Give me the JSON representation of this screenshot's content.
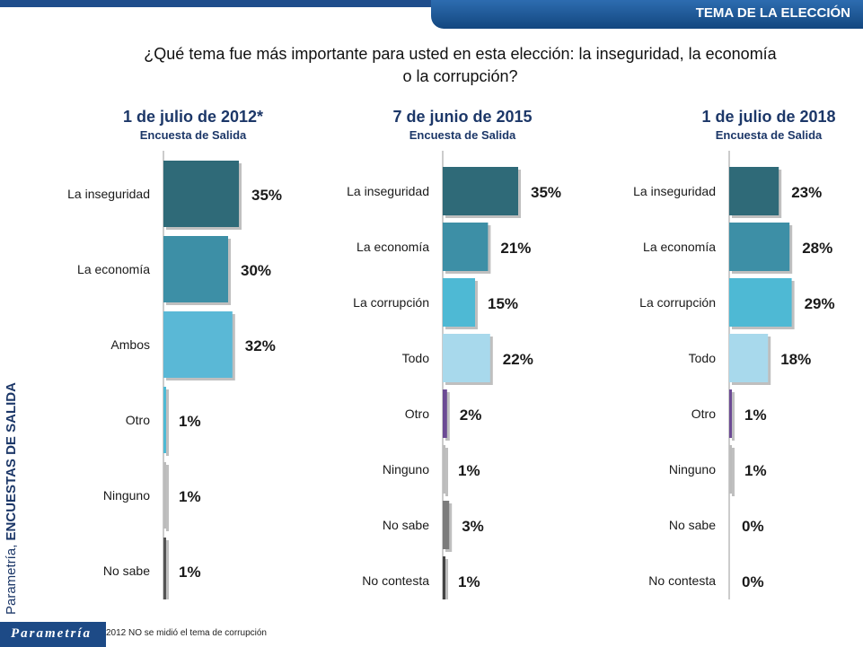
{
  "header": {
    "section_title": "TEMA DE LA ELECCIÓN"
  },
  "question": {
    "line1": "¿Qué tema fue más importante para usted en esta elección: la inseguridad, la economía",
    "line2": "o la corrupción?"
  },
  "side_source": {
    "normal": "Parametría, ",
    "bold": "ENCUESTAS DE SALIDA"
  },
  "brand": "Parametría",
  "footnote": "2012 NO se midió el tema de corrupción",
  "colors": {
    "inseguridad": "#2f6a78",
    "economia": "#3d8fa6",
    "corrupcion": "#4eb9d4",
    "ambos_todo": "#a8d9ec",
    "otro": "#6c4b94",
    "ninguno": "#bcbcbc",
    "no_sabe": "#7c7c7c",
    "no_contesta": "#444444",
    "ambos_2012": "#5ab8d6"
  },
  "chart_data": [
    {
      "type": "bar",
      "title": "1 de julio de 2012*",
      "subtitle": "Encuesta de Salida",
      "categories": [
        "La inseguridad",
        "La economía",
        "Ambos",
        "Otro",
        "Ninguno",
        "No sabe"
      ],
      "values": [
        35,
        30,
        32,
        1,
        1,
        1
      ],
      "labels": [
        "35%",
        "30%",
        "32%",
        "1%",
        "1%",
        "1%"
      ],
      "colors": [
        "#2f6a78",
        "#3d8fa6",
        "#5ab8d6",
        "#4eb9d4",
        "#bcbcbc",
        "#555555"
      ],
      "xlim": [
        0,
        35
      ]
    },
    {
      "type": "bar",
      "title": "7 de junio de 2015",
      "subtitle": "Encuesta de Salida",
      "categories": [
        "La inseguridad",
        "La economía",
        "La corrupción",
        "Todo",
        "Otro",
        "Ninguno",
        "No sabe",
        "No contesta"
      ],
      "values": [
        35,
        21,
        15,
        22,
        2,
        1,
        3,
        1
      ],
      "labels": [
        "35%",
        "21%",
        "15%",
        "22%",
        "2%",
        "1%",
        "3%",
        "1%"
      ],
      "colors": [
        "#2f6a78",
        "#3d8fa6",
        "#4eb9d4",
        "#a8d9ec",
        "#6c4b94",
        "#bcbcbc",
        "#7c7c7c",
        "#444444"
      ],
      "xlim": [
        0,
        35
      ]
    },
    {
      "type": "bar",
      "title": "1 de julio de 2018",
      "subtitle": "Encuesta de Salida",
      "categories": [
        "La inseguridad",
        "La economía",
        "La corrupción",
        "Todo",
        "Otro",
        "Ninguno",
        "No sabe",
        "No contesta"
      ],
      "values": [
        23,
        28,
        29,
        18,
        1,
        1,
        0,
        0
      ],
      "labels": [
        "23%",
        "28%",
        "29%",
        "18%",
        "1%",
        "1%",
        "0%",
        "0%"
      ],
      "colors": [
        "#2f6a78",
        "#3d8fa6",
        "#4eb9d4",
        "#a8d9ec",
        "#6c4b94",
        "#bcbcbc",
        "#7c7c7c",
        "#444444"
      ],
      "xlim": [
        0,
        35
      ]
    }
  ]
}
